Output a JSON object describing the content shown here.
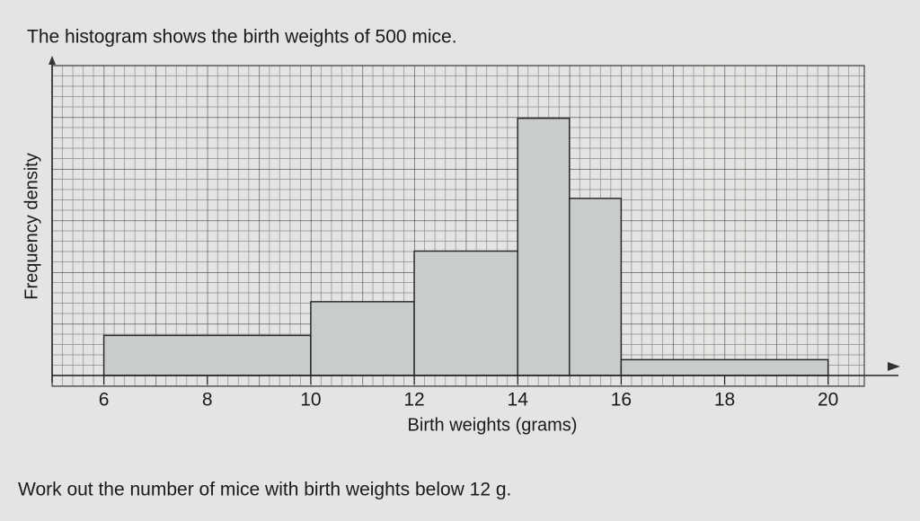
{
  "chart_data": {
    "type": "histogram",
    "title": "The histogram shows the birth weights of 500 mice.",
    "x_label": "Birth weights (grams)",
    "y_label": "Frequency density",
    "question": "Work out the number of mice with birth weights below 12 g.",
    "bins": [
      6,
      10,
      12,
      14,
      15,
      16,
      20
    ],
    "counts": [
      19,
      35,
      59,
      122,
      84,
      7.5
    ],
    "color": "#c9cccd",
    "xlim": [
      5,
      20.7
    ],
    "ylim": [
      0,
      147
    ],
    "xticks": [
      6,
      8,
      10,
      12,
      14,
      16,
      18,
      20
    ],
    "grid": true
  }
}
